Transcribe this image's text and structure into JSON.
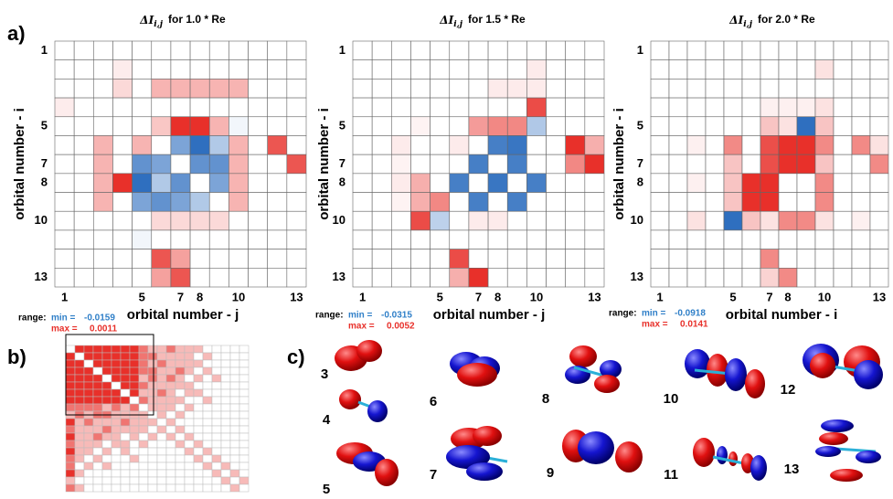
{
  "panel_labels": [
    "a)",
    "b)",
    "c)"
  ],
  "chart_data": [
    {
      "type": "heatmap",
      "title": {
        "symbol": "ΔI",
        "subscript": "i,j",
        "text": "for 1.0 * Re"
      },
      "x_label": "orbital number - j",
      "y_label": "orbital number - i",
      "xlim": [
        0.5,
        13.5
      ],
      "ylim": [
        0.5,
        13.5
      ],
      "xticks": [
        1,
        5,
        7,
        8,
        10,
        13
      ],
      "yticks": [
        1,
        5,
        7,
        8,
        10,
        13
      ],
      "range_label": "range:",
      "min_label": "min =",
      "max_label": "max =",
      "vmin": -0.0159,
      "vmax": 0.0011,
      "neg_color": "#2f6fbf",
      "pos_color": "#e8302a",
      "values": [
        [
          0,
          0,
          0,
          0,
          0,
          0,
          0,
          0,
          0,
          0,
          0,
          0,
          0
        ],
        [
          0,
          0,
          0,
          0.0001,
          0,
          0,
          0,
          0,
          0,
          0,
          0,
          0,
          0
        ],
        [
          0,
          0,
          0,
          0.0002,
          0,
          0.0004,
          0.0004,
          0.0004,
          0.0004,
          0.0004,
          0,
          0,
          0
        ],
        [
          0.0001,
          0,
          0,
          0,
          0,
          0,
          0,
          0,
          0,
          0,
          0,
          0,
          0
        ],
        [
          0,
          0,
          0,
          0,
          0,
          0.0003,
          0.0011,
          0.0011,
          0.0004,
          -0.001,
          0,
          0,
          0
        ],
        [
          0,
          0,
          0.0004,
          0,
          0.0004,
          0,
          -0.01,
          -0.0159,
          -0.006,
          0.0004,
          0,
          0.0009,
          0
        ],
        [
          0,
          0,
          0.0004,
          0,
          -0.012,
          -0.01,
          0,
          -0.012,
          -0.012,
          0.0004,
          0,
          0,
          0.0009
        ],
        [
          0,
          0,
          0.0004,
          0.0011,
          -0.0159,
          -0.006,
          -0.012,
          0,
          -0.01,
          0.0004,
          0,
          0,
          0
        ],
        [
          0,
          0,
          0.0004,
          0,
          -0.01,
          -0.012,
          -0.01,
          -0.006,
          0,
          0.0004,
          0,
          0,
          0
        ],
        [
          0,
          0,
          0,
          0,
          0,
          0.0002,
          0.0002,
          0.0002,
          0.0002,
          0,
          0,
          0,
          0
        ],
        [
          0,
          0,
          0,
          0,
          -0.001,
          0,
          0,
          0,
          0,
          0,
          0,
          0,
          0
        ],
        [
          0,
          0,
          0,
          0,
          0,
          0.0009,
          0.0005,
          0,
          0,
          0,
          0,
          0,
          0
        ],
        [
          0,
          0,
          0,
          0,
          0,
          0.0005,
          0.0009,
          0,
          0,
          0,
          0,
          0,
          0
        ]
      ]
    },
    {
      "type": "heatmap",
      "title": {
        "symbol": "ΔI",
        "subscript": "i,j",
        "text": "for 1.5 * Re"
      },
      "x_label": "orbital number - j",
      "y_label": "orbital number - i",
      "xlim": [
        0.5,
        13.5
      ],
      "ylim": [
        0.5,
        13.5
      ],
      "xticks": [
        1,
        5,
        7,
        8,
        10,
        13
      ],
      "yticks": [
        1,
        5,
        7,
        8,
        10,
        13
      ],
      "range_label": "range:",
      "min_label": "min =",
      "max_label": "max =",
      "vmin": -0.0315,
      "vmax": 0.0052,
      "neg_color": "#2f6fbf",
      "pos_color": "#e8302a",
      "values": [
        [
          0,
          0,
          0,
          0,
          0,
          0,
          0,
          0,
          0,
          0,
          0,
          0,
          0
        ],
        [
          0,
          0,
          0,
          0,
          0,
          0,
          0,
          0,
          0,
          0.0005,
          0,
          0,
          0
        ],
        [
          0,
          0,
          0,
          0,
          0,
          0,
          0,
          0.0005,
          0.0005,
          0.0005,
          0,
          0,
          0
        ],
        [
          0,
          0,
          0,
          0,
          0,
          0,
          0,
          0,
          0,
          0.0045,
          0,
          0,
          0
        ],
        [
          0,
          0,
          0,
          0.0003,
          0,
          0,
          0.0025,
          0.003,
          0.003,
          -0.012,
          0,
          0,
          0
        ],
        [
          0,
          0,
          0.0005,
          0,
          0,
          0.0005,
          0,
          -0.028,
          -0.03,
          0,
          0,
          0.0052,
          0.002
        ],
        [
          0,
          0,
          0.0003,
          0,
          0,
          0,
          -0.028,
          0,
          -0.028,
          0,
          0,
          0.003,
          0.0052
        ],
        [
          0,
          0,
          0.0005,
          0.002,
          0,
          -0.028,
          0,
          -0.03,
          0,
          -0.028,
          0,
          0,
          0
        ],
        [
          0,
          0,
          0.0003,
          0.002,
          0.003,
          0,
          -0.028,
          0,
          -0.028,
          0,
          0,
          0,
          0
        ],
        [
          0,
          0,
          0,
          0.0045,
          -0.01,
          0,
          0.0005,
          0.0005,
          0,
          0,
          0,
          0,
          0
        ],
        [
          0,
          0,
          0,
          0,
          0,
          0,
          0,
          0,
          0,
          0,
          0,
          0,
          0
        ],
        [
          0,
          0,
          0,
          0,
          0,
          0.0045,
          0,
          0,
          0,
          0,
          0,
          0,
          0
        ],
        [
          0,
          0,
          0,
          0,
          0,
          0.002,
          0.0052,
          0,
          0,
          0,
          0,
          0,
          0
        ]
      ]
    },
    {
      "type": "heatmap",
      "title": {
        "symbol": "ΔI",
        "subscript": "i,j",
        "text": "for 2.0 * Re"
      },
      "x_label": "orbital number - i",
      "y_label": "orbital number - i",
      "xlim": [
        0.5,
        13.5
      ],
      "ylim": [
        0.5,
        13.5
      ],
      "xticks": [
        1,
        5,
        7,
        8,
        10,
        13
      ],
      "yticks": [
        1,
        5,
        7,
        8,
        10,
        13
      ],
      "range_label": "range:",
      "min_label": "min =",
      "max_label": "max =",
      "vmin": -0.0918,
      "vmax": 0.0141,
      "neg_color": "#2f6fbf",
      "pos_color": "#e8302a",
      "values": [
        [
          0,
          0,
          0,
          0,
          0,
          0,
          0,
          0,
          0,
          0,
          0,
          0,
          0
        ],
        [
          0,
          0,
          0,
          0,
          0,
          0,
          0,
          0,
          0,
          0.002,
          0,
          0,
          0
        ],
        [
          0,
          0,
          0,
          0,
          0,
          0,
          0,
          0,
          0,
          0,
          0,
          0,
          0
        ],
        [
          0,
          0,
          0,
          0,
          0,
          0,
          0.001,
          0.001,
          0.001,
          0.002,
          0,
          0,
          0
        ],
        [
          0,
          0,
          0,
          0,
          0,
          0,
          0.004,
          0.002,
          -0.0918,
          0.004,
          0,
          0,
          0
        ],
        [
          0,
          0,
          0.001,
          0,
          0.008,
          0,
          0.012,
          0.0141,
          0.0141,
          0.008,
          0,
          0.008,
          0.002
        ],
        [
          0,
          0,
          0,
          0,
          0.004,
          0,
          0.012,
          0.0141,
          0.0141,
          0.004,
          0,
          0,
          0.008
        ],
        [
          0,
          0,
          0.001,
          0,
          0.004,
          0.0141,
          0.0141,
          0,
          0,
          0.008,
          0,
          0,
          0
        ],
        [
          0,
          0,
          0,
          0,
          0.004,
          0.0141,
          0.0141,
          0,
          0,
          0.008,
          0,
          0,
          0
        ],
        [
          0,
          0,
          0.002,
          0,
          -0.0918,
          0.004,
          0.002,
          0.008,
          0.008,
          0.002,
          0,
          0.001,
          0
        ],
        [
          0,
          0,
          0,
          0,
          0,
          0,
          0,
          0,
          0,
          0,
          0,
          0,
          0
        ],
        [
          0,
          0,
          0,
          0,
          0,
          0,
          0.008,
          0,
          0,
          0,
          0,
          0,
          0
        ],
        [
          0,
          0,
          0,
          0,
          0,
          0,
          0.003,
          0.008,
          0,
          0,
          0,
          0,
          0
        ]
      ]
    },
    {
      "type": "levelmap",
      "color": "#e8302a",
      "values": [
        [
          0,
          3,
          3,
          3,
          3,
          3,
          3,
          3,
          2,
          1,
          1,
          2,
          1,
          1,
          1,
          0,
          0,
          0,
          0,
          0
        ],
        [
          3,
          0,
          3,
          3,
          3,
          3,
          3,
          3,
          2,
          2,
          1,
          1,
          1,
          1,
          0,
          1,
          0,
          0,
          0,
          0
        ],
        [
          3,
          3,
          0,
          3,
          3,
          3,
          3,
          3,
          2,
          1,
          2,
          1,
          1,
          1,
          1,
          0,
          0,
          0,
          0,
          0
        ],
        [
          3,
          3,
          3,
          0,
          3,
          3,
          3,
          3,
          2,
          2,
          1,
          1,
          2,
          1,
          0,
          1,
          0,
          0,
          0,
          0
        ],
        [
          3,
          3,
          3,
          3,
          0,
          3,
          3,
          3,
          1,
          2,
          1,
          2,
          1,
          0,
          1,
          0,
          1,
          0,
          0,
          0
        ],
        [
          3,
          3,
          3,
          3,
          3,
          0,
          3,
          3,
          2,
          1,
          1,
          1,
          1,
          1,
          0,
          0,
          0,
          0,
          0,
          0
        ],
        [
          3,
          3,
          3,
          3,
          3,
          3,
          0,
          3,
          1,
          1,
          2,
          1,
          0,
          1,
          1,
          0,
          0,
          0,
          0,
          0
        ],
        [
          3,
          3,
          3,
          3,
          3,
          3,
          3,
          0,
          2,
          1,
          1,
          1,
          1,
          0,
          0,
          1,
          0,
          0,
          0,
          0
        ],
        [
          2,
          2,
          2,
          2,
          1,
          2,
          1,
          2,
          0,
          1,
          1,
          1,
          0,
          1,
          0,
          0,
          0,
          0,
          0,
          0
        ],
        [
          1,
          2,
          1,
          2,
          2,
          1,
          1,
          1,
          1,
          0,
          1,
          0,
          1,
          0,
          0,
          0,
          0,
          0,
          0,
          0
        ],
        [
          3,
          1,
          2,
          1,
          1,
          1,
          2,
          1,
          1,
          1,
          0,
          1,
          0,
          0,
          0,
          0,
          0,
          0,
          0,
          0
        ],
        [
          2,
          1,
          1,
          1,
          2,
          1,
          1,
          1,
          1,
          0,
          1,
          0,
          1,
          0,
          0,
          0,
          0,
          0,
          0,
          0
        ],
        [
          3,
          1,
          1,
          2,
          1,
          1,
          0,
          1,
          0,
          1,
          0,
          1,
          0,
          1,
          0,
          0,
          0,
          0,
          0,
          0
        ],
        [
          2,
          1,
          1,
          1,
          0,
          1,
          1,
          0,
          1,
          0,
          0,
          0,
          1,
          0,
          1,
          0,
          0,
          0,
          0,
          0
        ],
        [
          3,
          1,
          1,
          0,
          1,
          0,
          1,
          0,
          0,
          0,
          0,
          0,
          0,
          1,
          0,
          1,
          0,
          0,
          0,
          0
        ],
        [
          2,
          1,
          0,
          1,
          0,
          0,
          0,
          1,
          0,
          0,
          0,
          0,
          0,
          0,
          1,
          0,
          1,
          0,
          0,
          0
        ],
        [
          2,
          0,
          1,
          0,
          1,
          0,
          0,
          0,
          0,
          0,
          0,
          0,
          0,
          0,
          0,
          1,
          0,
          1,
          0,
          0
        ],
        [
          3,
          1,
          0,
          0,
          0,
          0,
          0,
          0,
          0,
          0,
          0,
          0,
          0,
          0,
          0,
          0,
          1,
          0,
          1,
          0
        ],
        [
          1,
          0,
          0,
          0,
          0,
          0,
          0,
          0,
          0,
          0,
          0,
          0,
          0,
          0,
          0,
          0,
          0,
          1,
          0,
          1
        ],
        [
          2,
          1,
          0,
          0,
          0,
          0,
          0,
          0,
          0,
          0,
          0,
          0,
          0,
          0,
          0,
          0,
          0,
          0,
          1,
          0
        ]
      ]
    }
  ],
  "orbitals": [
    {
      "label": "3"
    },
    {
      "label": "4"
    },
    {
      "label": "5"
    },
    {
      "label": "6"
    },
    {
      "label": "7"
    },
    {
      "label": "8"
    },
    {
      "label": "9"
    },
    {
      "label": "10"
    },
    {
      "label": "11"
    },
    {
      "label": "12"
    },
    {
      "label": "13"
    }
  ]
}
